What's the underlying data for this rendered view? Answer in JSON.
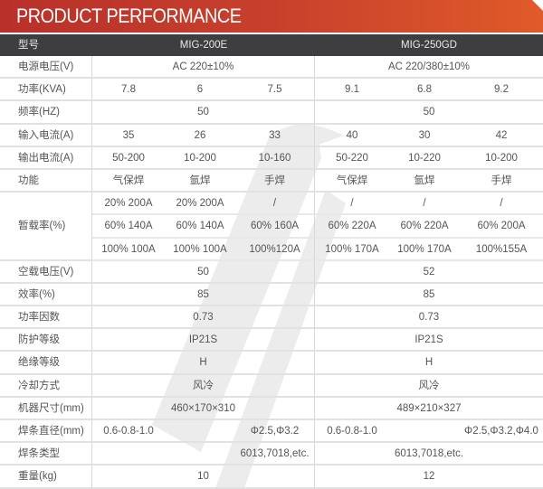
{
  "title": "PRODUCT PERFORMANCE",
  "header": {
    "label": "型号",
    "models": [
      "MIG-200E",
      "MIG-250GD"
    ]
  },
  "rows": [
    {
      "label": "电源电压(V)",
      "cells": [
        {
          "text": "AC 220±10%",
          "span": 3
        },
        {
          "text": "AC 220/380±10%",
          "span": 3
        }
      ]
    },
    {
      "label": "功率(KVA)",
      "cells": [
        {
          "text": "7.8"
        },
        {
          "text": "6"
        },
        {
          "text": "7.5"
        },
        {
          "text": "9.1"
        },
        {
          "text": "6.8"
        },
        {
          "text": "9.2"
        }
      ]
    },
    {
      "label": "频率(HZ)",
      "cells": [
        {
          "text": "50",
          "span": 3
        },
        {
          "text": "50",
          "span": 3
        }
      ]
    },
    {
      "label": "输入电流(A)",
      "cells": [
        {
          "text": "35"
        },
        {
          "text": "26"
        },
        {
          "text": "33"
        },
        {
          "text": "40"
        },
        {
          "text": "30"
        },
        {
          "text": "42"
        }
      ]
    },
    {
      "label": "输出电流(A)",
      "cells": [
        {
          "text": "50-200"
        },
        {
          "text": "10-200"
        },
        {
          "text": "10-160"
        },
        {
          "text": "50-220"
        },
        {
          "text": "10-220"
        },
        {
          "text": "10-200"
        }
      ]
    },
    {
      "label": "功能",
      "cells": [
        {
          "text": "气保焊"
        },
        {
          "text": "氩焊"
        },
        {
          "text": "手焊"
        },
        {
          "text": "气保焊"
        },
        {
          "text": "氩焊"
        },
        {
          "text": "手焊"
        }
      ]
    },
    {
      "label": "暂载率(%)",
      "rowspan": 3,
      "cells": [
        {
          "text": "20% 200A"
        },
        {
          "text": "20% 200A"
        },
        {
          "text": "/"
        },
        {
          "text": "/"
        },
        {
          "text": "/"
        },
        {
          "text": "/"
        }
      ]
    },
    {
      "cells": [
        {
          "text": "60% 140A"
        },
        {
          "text": "60% 140A"
        },
        {
          "text": "60% 160A"
        },
        {
          "text": "60% 220A"
        },
        {
          "text": "60% 220A"
        },
        {
          "text": "60% 200A"
        }
      ]
    },
    {
      "cells": [
        {
          "text": "100% 100A"
        },
        {
          "text": "100% 100A"
        },
        {
          "text": "100%120A"
        },
        {
          "text": "100% 170A"
        },
        {
          "text": "100% 170A"
        },
        {
          "text": "100%155A"
        }
      ]
    },
    {
      "label": "空载电压(V)",
      "cells": [
        {
          "text": "50",
          "span": 3
        },
        {
          "text": "52",
          "span": 3
        }
      ]
    },
    {
      "label": "效率(%)",
      "cells": [
        {
          "text": "85",
          "span": 3
        },
        {
          "text": "85",
          "span": 3
        }
      ]
    },
    {
      "label": "功率因数",
      "cells": [
        {
          "text": "0.73",
          "span": 3
        },
        {
          "text": "0.73",
          "span": 3
        }
      ]
    },
    {
      "label": "防护等级",
      "cells": [
        {
          "text": "IP21S",
          "span": 3
        },
        {
          "text": "IP21S",
          "span": 3
        }
      ]
    },
    {
      "label": "绝缘等级",
      "cells": [
        {
          "text": "H",
          "span": 3
        },
        {
          "text": "H",
          "span": 3
        }
      ]
    },
    {
      "label": "冷却方式",
      "cells": [
        {
          "text": "风冷",
          "span": 3
        },
        {
          "text": "风冷",
          "span": 3
        }
      ]
    },
    {
      "label": "机器尺寸(mm)",
      "cells": [
        {
          "text": "460×170×310",
          "span": 3
        },
        {
          "text": "489×210×327",
          "span": 3
        }
      ]
    },
    {
      "label": "焊条直径(mm)",
      "cells": [
        {
          "text": "0.6-0.8-1.0"
        },
        {
          "text": ""
        },
        {
          "text": "Φ2.5,Φ3.2"
        },
        {
          "text": "0.6-0.8-1.0"
        },
        {
          "text": ""
        },
        {
          "text": "Φ2.5,Φ3.2,Φ4.0"
        }
      ]
    },
    {
      "label": "焊条类型",
      "cells": [
        {
          "text": ""
        },
        {
          "text": ""
        },
        {
          "text": "6013,7018,etc."
        },
        {
          "text": "6013,7018,etc.",
          "span": 3
        }
      ]
    },
    {
      "label": "重量(kg)",
      "cells": [
        {
          "text": "10",
          "span": 3
        },
        {
          "text": "12",
          "span": 3
        }
      ]
    }
  ],
  "colors": {
    "title_bar": "#c8402c",
    "header_row": "#3e3e40",
    "text": "#555555"
  }
}
